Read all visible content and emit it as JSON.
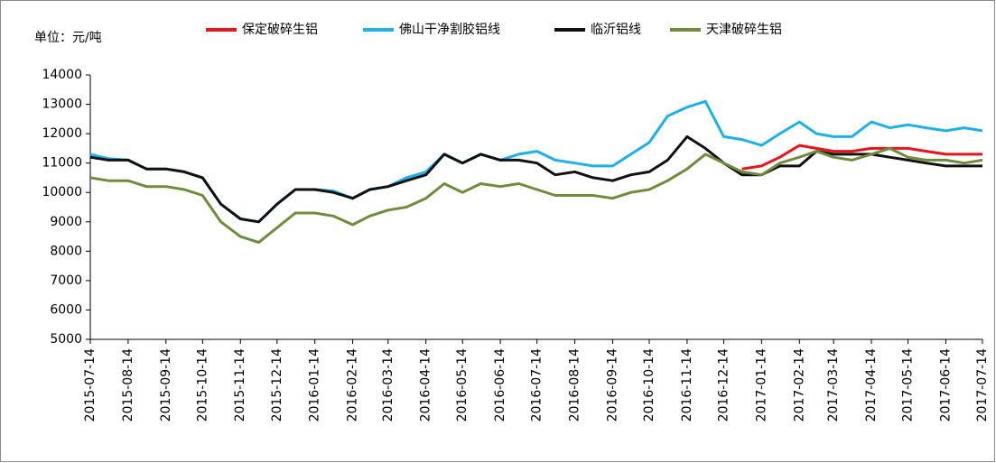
{
  "chart_data": {
    "type": "line",
    "title": "单位：元/吨",
    "x": [
      "2015-07-14",
      "2015-07-29",
      "2015-08-14",
      "2015-08-29",
      "2015-09-14",
      "2015-09-29",
      "2015-10-14",
      "2015-10-29",
      "2015-11-14",
      "2015-11-29",
      "2015-12-14",
      "2015-12-29",
      "2016-01-14",
      "2016-01-29",
      "2016-02-14",
      "2016-02-28",
      "2016-03-14",
      "2016-03-29",
      "2016-04-14",
      "2016-04-29",
      "2016-05-14",
      "2016-05-29",
      "2016-06-14",
      "2016-06-29",
      "2016-07-14",
      "2016-07-29",
      "2016-08-14",
      "2016-08-29",
      "2016-09-14",
      "2016-09-29",
      "2016-10-14",
      "2016-10-29",
      "2016-11-14",
      "2016-11-29",
      "2016-12-14",
      "2016-12-29",
      "2017-01-14",
      "2017-01-29",
      "2017-02-14",
      "2017-02-28",
      "2017-03-14",
      "2017-03-29",
      "2017-04-14",
      "2017-04-29",
      "2017-05-14",
      "2017-05-29",
      "2017-06-14",
      "2017-06-29",
      "2017-07-14"
    ],
    "series": [
      {
        "name": "保定破碎生铝",
        "color": "#e8141b",
        "values": [
          null,
          null,
          null,
          null,
          null,
          null,
          null,
          null,
          null,
          null,
          null,
          null,
          null,
          null,
          null,
          null,
          null,
          null,
          null,
          null,
          null,
          null,
          null,
          null,
          null,
          null,
          null,
          null,
          null,
          null,
          null,
          null,
          null,
          null,
          null,
          10800,
          10900,
          11200,
          11600,
          11500,
          11400,
          11400,
          11500,
          11500,
          11500,
          11400,
          11300,
          11300,
          11300
        ]
      },
      {
        "name": "佛山干净割胶铝线",
        "color": "#1fb0e8",
        "values": [
          11300,
          11150,
          11100,
          10800,
          10800,
          10700,
          10500,
          9600,
          9100,
          9000,
          9600,
          10100,
          10100,
          10050,
          9800,
          10100,
          10200,
          10500,
          10700,
          11300,
          11000,
          11300,
          11100,
          11300,
          11400,
          11100,
          11000,
          10900,
          10900,
          11300,
          11700,
          12600,
          12900,
          13100,
          11900,
          11800,
          11600,
          12000,
          12400,
          12000,
          11900,
          11900,
          12400,
          12200,
          12300,
          12200,
          12100,
          12200,
          12100
        ]
      },
      {
        "name": "临沂铝线",
        "color": "#111111",
        "values": [
          11200,
          11100,
          11100,
          10800,
          10800,
          10700,
          10500,
          9600,
          9100,
          9000,
          9600,
          10100,
          10100,
          10000,
          9800,
          10100,
          10200,
          10400,
          10600,
          11300,
          11000,
          11300,
          11100,
          11100,
          11000,
          10600,
          10700,
          10500,
          10400,
          10600,
          10700,
          11100,
          11900,
          11500,
          11000,
          10600,
          10600,
          10900,
          10900,
          11400,
          11300,
          11300,
          11300,
          11200,
          11100,
          11000,
          10900,
          10900,
          10900
        ]
      },
      {
        "name": "天津破碎生铝",
        "color": "#6e8c3c",
        "values": [
          10500,
          10400,
          10400,
          10200,
          10200,
          10100,
          9900,
          9000,
          8500,
          8300,
          8800,
          9300,
          9300,
          9200,
          8900,
          9200,
          9400,
          9500,
          9800,
          10300,
          10000,
          10300,
          10200,
          10300,
          10100,
          9900,
          9900,
          9900,
          9800,
          10000,
          10100,
          10400,
          10800,
          11300,
          11000,
          10700,
          10600,
          11000,
          11200,
          11400,
          11200,
          11100,
          11300,
          11500,
          11200,
          11100,
          11100,
          11000,
          11100
        ]
      }
    ],
    "xlim": [
      "2015-07-14",
      "2017-07-14"
    ],
    "xticks": [
      "2015-07-14",
      "2015-08-14",
      "2015-09-14",
      "2015-10-14",
      "2015-11-14",
      "2015-12-14",
      "2016-01-14",
      "2016-02-14",
      "2016-03-14",
      "2016-04-14",
      "2016-05-14",
      "2016-06-14",
      "2016-07-14",
      "2016-08-14",
      "2016-09-14",
      "2016-10-14",
      "2016-11-14",
      "2016-12-14",
      "2017-01-14",
      "2017-02-14",
      "2017-03-14",
      "2017-04-14",
      "2017-05-14",
      "2017-06-14",
      "2017-07-14"
    ],
    "ylim": [
      5000,
      14000
    ],
    "yticks": [
      5000,
      6000,
      7000,
      8000,
      9000,
      10000,
      11000,
      12000,
      13000,
      14000
    ],
    "legend": "top"
  }
}
